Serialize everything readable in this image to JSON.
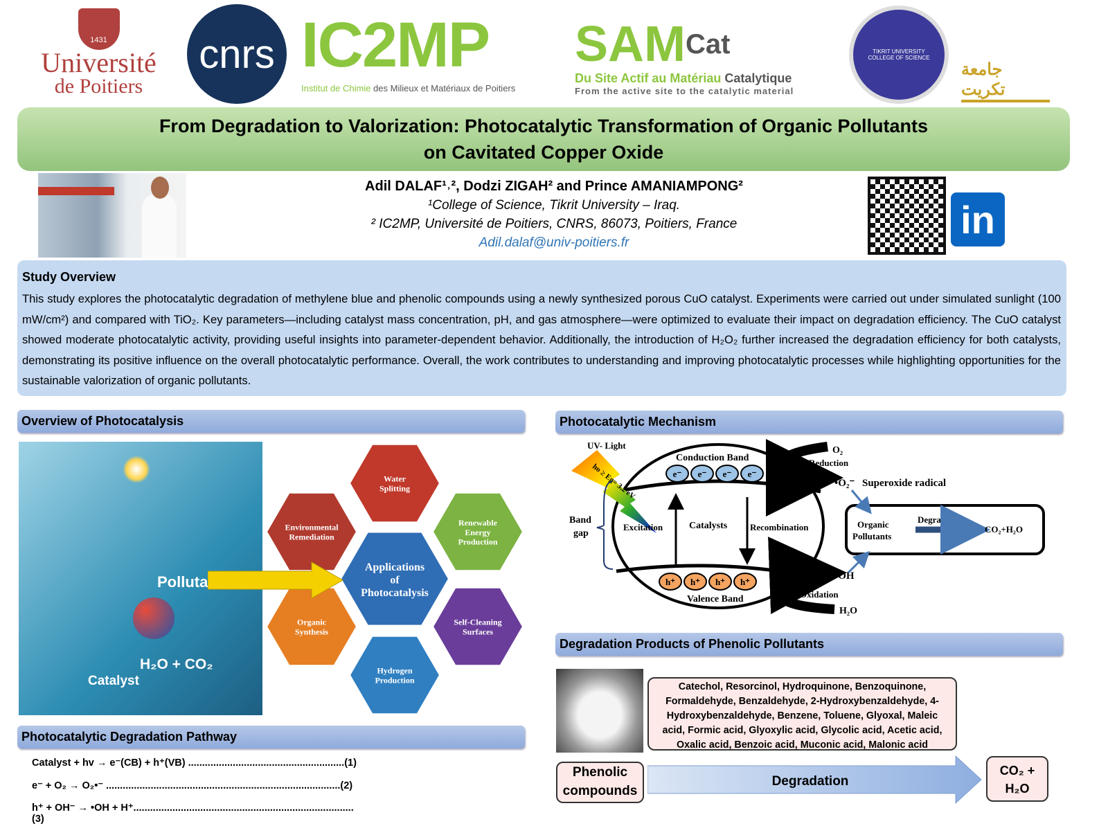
{
  "logos": {
    "poitiers": {
      "text1": "Université",
      "text2": "de Poitiers",
      "year": "1431"
    },
    "cnrs": {
      "text": "cnrs"
    },
    "ic2mp": {
      "text": "IC2MP",
      "subtitle_a": "Institut de Chimie",
      "subtitle_b": " des Milieux et Matériaux de Poitiers"
    },
    "samcat": {
      "text": "SAM",
      "cat": "Cat",
      "line1a": "Du Site Actif au Matériau ",
      "line1b": "Catalytique",
      "line2": "From the active site to the catalytic material"
    },
    "tikrit": {
      "text": "TIKRIT UNIVERSITY COLLEGE OF SCIENCE"
    },
    "tikrit_univ": {
      "text": "جامعة تكريت"
    }
  },
  "title": {
    "line1": "From Degradation to Valorization: Photocatalytic Transformation of Organic Pollutants",
    "line2": "on Cavitated Copper Oxide"
  },
  "authors": {
    "names": "Adil DALAF¹˒², Dodzi ZIGAH² and Prince AMANIAMPONG²",
    "affil1": "¹College of Science, Tikrit University – Iraq.",
    "affil2": "² IC2MP, Université de Poitiers, CNRS, 86073, Poitiers, France",
    "email": "Adil.dalaf@univ-poitiers.fr"
  },
  "social": {
    "linkedin": "in"
  },
  "study_overview": {
    "heading": "Study Overview",
    "text": "This study explores the photocatalytic degradation of methylene blue and phenolic compounds using a newly synthesized porous CuO catalyst. Experiments were carried out under simulated sunlight (100 mW/cm²) and compared with TiO₂. Key parameters—including catalyst mass concentration, pH, and gas atmosphere—were optimized to evaluate their impact on degradation efficiency. The CuO catalyst showed moderate photocatalytic activity, providing useful insights into parameter-dependent behavior. Additionally, the introduction of H₂O₂ further increased the degradation efficiency for both catalysts, demonstrating its positive influence on the overall photocatalytic performance. Overall, the work contributes to understanding and improving photocatalytic processes while highlighting opportunities for the sustainable valorization of organic pollutants."
  },
  "overview_photocatalysis": {
    "heading": "Overview of Photocatalysis",
    "image_labels": {
      "pollutant": "Pollutant",
      "products": "H₂O + CO₂",
      "catalyst": "Catalyst"
    },
    "center": "Applications of Photocatalysis",
    "applications": [
      "Water Splitting",
      "Renewable Energy Production",
      "Self-Cleaning Surfaces",
      "Hydrogen Production",
      "Organic Synthesis",
      "Environmental Remediation"
    ],
    "colors": [
      "#c0392b",
      "#7cb342",
      "#6a3d9a",
      "#2f7fc1",
      "#e67e22",
      "#b03a2e"
    ]
  },
  "pathway": {
    "heading": "Photocatalytic Degradation Pathway",
    "equations": [
      "Catalyst + hv → e⁻(CB) + h⁺(VB) ........................................................(1)",
      "e⁻ + O₂ → O₂•⁻ ....................................................................................(2)",
      "h⁺ + OH⁻ → •OH + H⁺...............................................................................(3)"
    ]
  },
  "mechanism": {
    "heading": "Photocatalytic Mechanism",
    "uv_light": "UV- Light",
    "energy": "hυ ≥ Eg= 3.2 eV",
    "conduction_band": "Conduction Band",
    "valence_band": "Valence Band",
    "electron": "e⁻",
    "hole": "h⁺",
    "band_gap_1": "Band",
    "band_gap_2": "gap",
    "excitation": "Excitation",
    "catalysts": "Catalysts",
    "recombination": "Recombination",
    "o2": "O₂",
    "reduction": "Reduction",
    "superoxide": "•O₂⁻",
    "superoxide_label": "Superoxide radical",
    "organic_1": "Organic",
    "organic_2": "Pollutants",
    "degradation": "Degradation",
    "products": "CO₂+H₂O",
    "oh": "•OH",
    "oxidation": "Oxidation",
    "h2o": "H₂O"
  },
  "degradation_products": {
    "heading": "Degradation Products of Phenolic Pollutants",
    "list": "Catechol, Resorcinol, Hydroquinone, Benzoquinone, Formaldehyde, Benzaldehyde, 2-Hydroxybenzaldehyde, 4-Hydroxybenzaldehyde, Benzene, Toluene, Glyoxal, Maleic acid, Formic acid, Glyoxylic acid, Glycolic acid, Acetic acid, Oxalic acid, Benzoic acid, Muconic acid, Malonic acid",
    "source_1": "Phenolic",
    "source_2": "compounds",
    "arrow": "Degradation",
    "end_1": "CO₂ +",
    "end_2": "H₂O"
  }
}
